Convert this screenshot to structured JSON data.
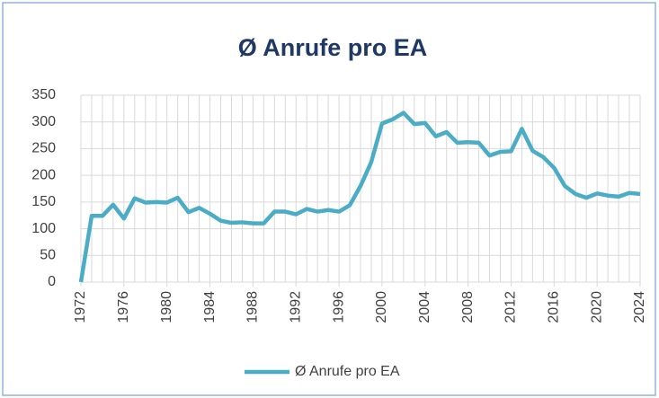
{
  "chart_data": {
    "type": "line",
    "title": "Ø Anrufe pro EA",
    "x": [
      1972,
      1973,
      1974,
      1975,
      1976,
      1977,
      1978,
      1979,
      1980,
      1981,
      1982,
      1983,
      1984,
      1985,
      1986,
      1987,
      1988,
      1989,
      1990,
      1991,
      1992,
      1993,
      1994,
      1995,
      1996,
      1997,
      1998,
      1999,
      2000,
      2001,
      2002,
      2003,
      2004,
      2005,
      2006,
      2007,
      2008,
      2009,
      2010,
      2011,
      2012,
      2013,
      2014,
      2015,
      2016,
      2017,
      2018,
      2019,
      2020,
      2021,
      2022,
      2023,
      2024
    ],
    "series": [
      {
        "name": "Ø Anrufe pro EA",
        "color": "#4bacc6",
        "values": [
          0,
          124,
          124,
          145,
          119,
          157,
          149,
          150,
          149,
          158,
          131,
          139,
          128,
          115,
          111,
          112,
          110,
          110,
          132,
          132,
          127,
          137,
          132,
          135,
          132,
          144,
          180,
          225,
          297,
          305,
          317,
          296,
          298,
          273,
          281,
          261,
          262,
          261,
          237,
          244,
          245,
          287,
          246,
          234,
          214,
          180,
          165,
          158,
          166,
          162,
          160,
          167,
          165
        ]
      }
    ],
    "xlim": [
      1972,
      2024
    ],
    "xticks": [
      1972,
      1976,
      1980,
      1984,
      1988,
      1992,
      1996,
      2000,
      2004,
      2008,
      2012,
      2016,
      2020,
      2024
    ],
    "ylim": [
      0,
      350
    ],
    "yticks": [
      0,
      50,
      100,
      150,
      200,
      250,
      300,
      350
    ],
    "grid": true,
    "legend": "bottom"
  }
}
